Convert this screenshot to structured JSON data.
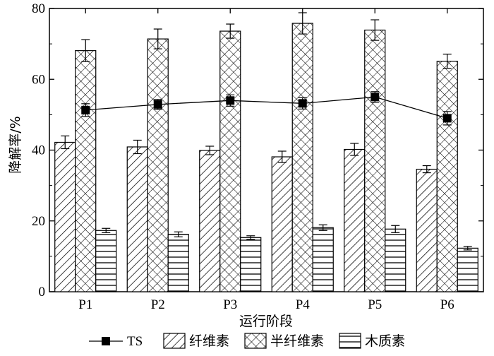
{
  "chart_data": {
    "type": "bar",
    "xlabel": "运行阶段",
    "ylabel": "降解率/%",
    "ylim": [
      0,
      80
    ],
    "yticks": [
      0,
      20,
      40,
      60,
      80
    ],
    "categories": [
      "P1",
      "P2",
      "P3",
      "P4",
      "P5",
      "P6"
    ],
    "grid": false,
    "legend_position": "bottom",
    "bar_series": [
      {
        "name": "纤维素",
        "pattern": "diagonal-hatch",
        "values": [
          42.2,
          40.9,
          39.9,
          38.1,
          40.2,
          34.6
        ],
        "errors": [
          1.8,
          1.9,
          1.2,
          1.6,
          1.7,
          1.0
        ]
      },
      {
        "name": "半纤维素",
        "pattern": "cross-hatch",
        "values": [
          68.1,
          71.4,
          73.6,
          75.8,
          73.9,
          65.1
        ],
        "errors": [
          3.1,
          2.8,
          2.0,
          3.0,
          2.9,
          2.0
        ]
      },
      {
        "name": "木质素",
        "pattern": "horizontal-lines",
        "values": [
          17.3,
          16.2,
          15.3,
          18.1,
          17.7,
          12.3
        ],
        "errors": [
          0.6,
          0.7,
          0.5,
          0.8,
          1.0,
          0.5
        ]
      }
    ],
    "line_series": {
      "name": "TS",
      "marker": "square",
      "values": [
        51.3,
        52.9,
        54.0,
        53.2,
        55.0,
        49.0
      ],
      "errors": [
        1.8,
        1.4,
        1.6,
        1.6,
        1.5,
        1.9
      ]
    },
    "legend_order": [
      "TS",
      "纤维素",
      "半纤维素",
      "木质素"
    ],
    "colors": {
      "ink": "#000000",
      "background": "#ffffff"
    }
  }
}
